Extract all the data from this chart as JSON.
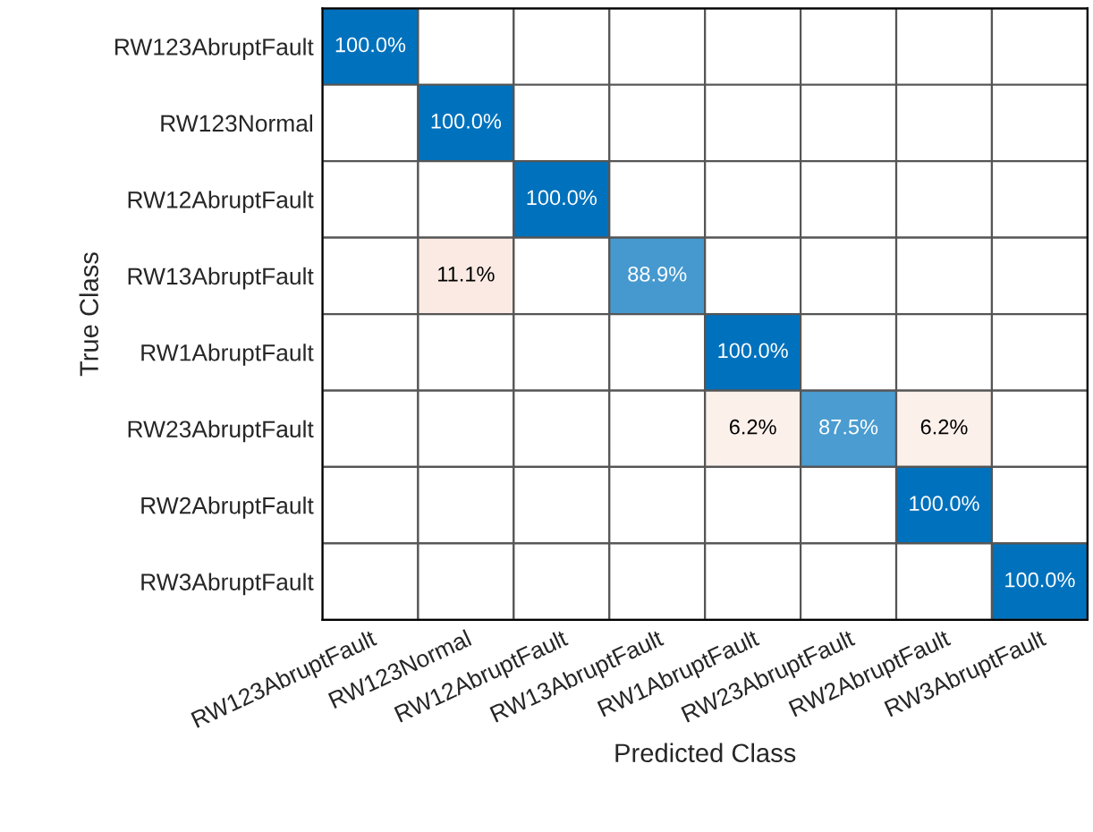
{
  "chart_data": {
    "type": "heatmap",
    "xlabel": "Predicted Class",
    "ylabel": "True Class",
    "categories": [
      "RW123AbruptFault",
      "RW123Normal",
      "RW12AbruptFault",
      "RW13AbruptFault",
      "RW1AbruptFault",
      "RW23AbruptFault",
      "RW2AbruptFault",
      "RW3AbruptFault"
    ],
    "y_categories": [
      "RW123AbruptFault",
      "RW123Normal",
      "RW12AbruptFault",
      "RW13AbruptFault",
      "RW1AbruptFault",
      "RW23AbruptFault",
      "RW2AbruptFault",
      "RW3AbruptFault"
    ],
    "cells": [
      [
        100,
        null,
        null,
        null,
        null,
        null,
        null,
        null
      ],
      [
        null,
        100,
        null,
        null,
        null,
        null,
        null,
        null
      ],
      [
        null,
        null,
        100,
        null,
        null,
        null,
        null,
        null
      ],
      [
        null,
        11.1,
        null,
        88.9,
        null,
        null,
        null,
        null
      ],
      [
        null,
        null,
        null,
        null,
        100,
        null,
        null,
        null
      ],
      [
        null,
        null,
        null,
        null,
        6.2,
        87.5,
        6.2,
        null
      ],
      [
        null,
        null,
        null,
        null,
        null,
        null,
        100,
        null
      ],
      [
        null,
        null,
        null,
        null,
        null,
        null,
        null,
        100
      ]
    ],
    "cell_labels": [
      [
        "100.0%",
        null,
        null,
        null,
        null,
        null,
        null,
        null
      ],
      [
        null,
        "100.0%",
        null,
        null,
        null,
        null,
        null,
        null
      ],
      [
        null,
        null,
        "100.0%",
        null,
        null,
        null,
        null,
        null
      ],
      [
        null,
        "11.1%",
        null,
        "88.9%",
        null,
        null,
        null,
        null
      ],
      [
        null,
        null,
        null,
        null,
        "100.0%",
        null,
        null,
        null
      ],
      [
        null,
        null,
        null,
        null,
        "6.2%",
        "87.5%",
        "6.2%",
        null
      ],
      [
        null,
        null,
        null,
        null,
        null,
        null,
        "100.0%",
        null
      ],
      [
        null,
        null,
        null,
        null,
        null,
        null,
        null,
        "100.0%"
      ]
    ]
  }
}
